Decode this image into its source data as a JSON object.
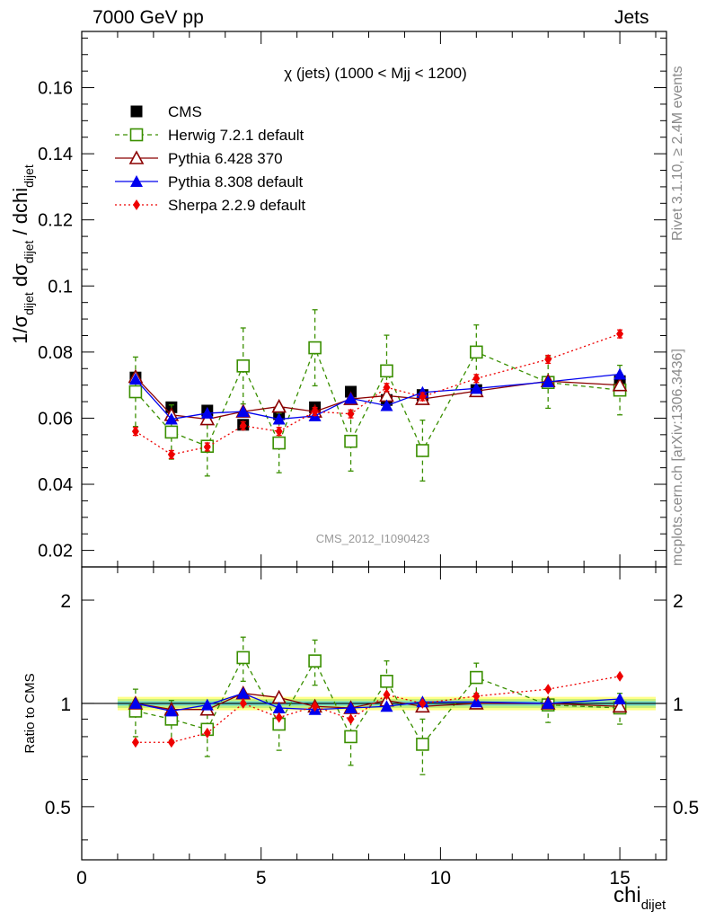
{
  "header": {
    "left": "7000 GeV pp",
    "right": "Jets"
  },
  "side": {
    "rivet": "Rivet 3.1.10, ≥ 2.4M events",
    "mcplots": "mcplots.cern.ch [arXiv:1306.3436]"
  },
  "chart_data": {
    "type": "line",
    "title": "χ (jets) (1000 < Mjj < 1200)",
    "watermark": "CMS_2012_I1090423",
    "ylabel_main": {
      "base": "1/σ",
      "sub1": "dijet",
      "mid": " dσ",
      "sub2": "dijet",
      "tail": " / dchi",
      "sub3": "dijet"
    },
    "ylabel_ratio": "Ratio to CMS",
    "xlabel": {
      "base": "chi",
      "sub": "dijet"
    },
    "xlim": [
      0,
      16.3
    ],
    "ylim_main": [
      0.015,
      0.177
    ],
    "ylim_ratio": [
      0.35,
      2.5
    ],
    "ratio_log_scale": true,
    "x_ticks": [
      "0",
      "5",
      "10",
      "15"
    ],
    "y_ticks_main": [
      "0.02",
      "0.04",
      "0.06",
      "0.08",
      "0.1",
      "0.12",
      "0.14",
      "0.16"
    ],
    "y_ticks_ratio": [
      "0.5",
      "1",
      "2"
    ],
    "legend_position": "top-left",
    "x": [
      1.5,
      2.5,
      3.5,
      4.5,
      5.5,
      6.5,
      7.5,
      8.5,
      9.5,
      11,
      13,
      15
    ],
    "cms_band_ratio": {
      "inner": [
        0.985,
        1.015
      ],
      "mid": [
        0.97,
        1.03
      ],
      "outer": [
        0.955,
        1.045
      ],
      "xrange": [
        1,
        16
      ]
    },
    "series": [
      {
        "name": "CMS",
        "color": "#000000",
        "marker": "filled-square",
        "line": "none",
        "values": [
          0.0723,
          0.0633,
          0.0623,
          0.058,
          0.0612,
          0.0633,
          0.068,
          0.0655,
          0.067,
          0.0685,
          0.071,
          0.0712
        ],
        "ratio": [
          1,
          1,
          1,
          1,
          1,
          1,
          1,
          1,
          1,
          1,
          1,
          1
        ]
      },
      {
        "name": "Herwig 7.2.1 default",
        "color": "#3a8f00",
        "marker": "open-square",
        "line": "dashed",
        "values": [
          0.068,
          0.0558,
          0.0515,
          0.0758,
          0.0525,
          0.0813,
          0.053,
          0.0743,
          0.0502,
          0.08,
          0.0708,
          0.0685
        ],
        "errors": [
          0.0105,
          0.0082,
          0.009,
          0.0115,
          0.009,
          0.0115,
          0.009,
          0.0108,
          0.0092,
          0.0082,
          0.0078,
          0.0075
        ],
        "ratio": [
          0.95,
          0.9,
          0.84,
          1.36,
          0.87,
          1.33,
          0.8,
          1.16,
          0.76,
          1.19,
          0.99,
          0.97
        ],
        "ratio_errors": [
          0.15,
          0.12,
          0.14,
          0.2,
          0.14,
          0.2,
          0.14,
          0.17,
          0.14,
          0.12,
          0.11,
          0.1
        ]
      },
      {
        "name": "Pythia 6.428 370",
        "color": "#8b0000",
        "marker": "open-triangle",
        "line": "solid",
        "values": [
          0.0725,
          0.061,
          0.0597,
          0.062,
          0.0635,
          0.062,
          0.0658,
          0.0668,
          0.0658,
          0.0682,
          0.0712,
          0.07
        ],
        "ratio": [
          1.0,
          0.96,
          0.96,
          1.07,
          1.04,
          0.98,
          0.97,
          1.02,
          0.98,
          1.0,
          1.0,
          0.98
        ]
      },
      {
        "name": "Pythia 8.308 default",
        "color": "#0000ee",
        "marker": "filled-triangle",
        "line": "solid",
        "values": [
          0.0718,
          0.0597,
          0.0615,
          0.062,
          0.0597,
          0.0607,
          0.066,
          0.0638,
          0.0678,
          0.069,
          0.071,
          0.0733
        ],
        "ratio": [
          1.0,
          0.95,
          0.99,
          1.07,
          0.97,
          0.96,
          0.97,
          0.98,
          1.01,
          1.01,
          1.0,
          1.03
        ]
      },
      {
        "name": "Sherpa 2.2.9 default",
        "color": "#ee0000",
        "marker": "filled-diamond",
        "line": "dotted",
        "values": [
          0.056,
          0.049,
          0.0513,
          0.0577,
          0.056,
          0.062,
          0.0613,
          0.0693,
          0.0665,
          0.072,
          0.0778,
          0.0855
        ],
        "errors": [
          0.0012,
          0.0012,
          0.0012,
          0.0012,
          0.0012,
          0.0012,
          0.0012,
          0.0012,
          0.0012,
          0.0012,
          0.0012,
          0.0012
        ],
        "ratio": [
          0.77,
          0.77,
          0.82,
          1.0,
          0.91,
          0.98,
          0.9,
          1.06,
          1.0,
          1.05,
          1.1,
          1.2
        ]
      }
    ]
  }
}
